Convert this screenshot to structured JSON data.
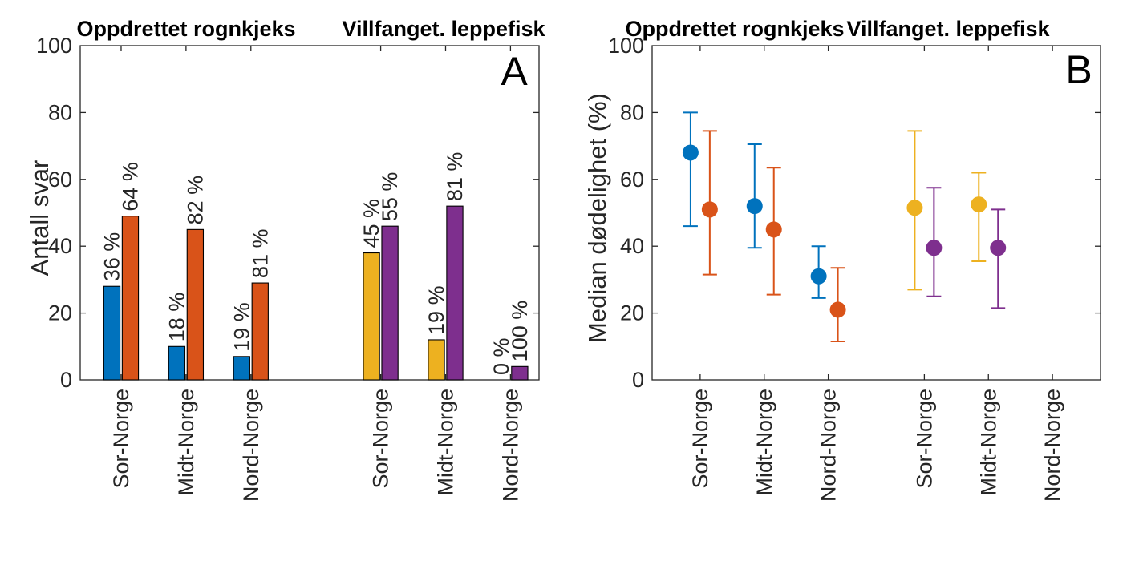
{
  "figure": {
    "background": "#ffffff",
    "text_color": "#262626",
    "title_color": "#000000",
    "palette": {
      "blue": "#0072BD",
      "orange": "#D95319",
      "yellow": "#EDB120",
      "purple": "#7E2F8E"
    }
  },
  "chart_data": [
    {
      "panel_label": "A",
      "type": "bar",
      "section_titles": [
        "Oppdrettet rognkjeks",
        "Villfanget. leppefisk"
      ],
      "ylabel": "Antall svar",
      "ylim": [
        0,
        100
      ],
      "yticks": [
        0,
        20,
        40,
        60,
        80,
        100
      ],
      "xlim": [
        0.37,
        7.44
      ],
      "grid": false,
      "groups": [
        {
          "category": "Sor-Norge",
          "x": 1,
          "bars": [
            {
              "color": "blue",
              "value": 28,
              "label": "36 %"
            },
            {
              "color": "orange",
              "value": 49,
              "label": "64 %"
            }
          ]
        },
        {
          "category": "Midt-Norge",
          "x": 2,
          "bars": [
            {
              "color": "blue",
              "value": 10,
              "label": "18 %"
            },
            {
              "color": "orange",
              "value": 45,
              "label": "82 %"
            }
          ]
        },
        {
          "category": "Nord-Norge",
          "x": 3,
          "bars": [
            {
              "color": "blue",
              "value": 7,
              "label": "19 %"
            },
            {
              "color": "orange",
              "value": 29,
              "label": "81 %"
            }
          ]
        },
        {
          "category": "Sor-Norge",
          "x": 5,
          "bars": [
            {
              "color": "yellow",
              "value": 38,
              "label": "45 %"
            },
            {
              "color": "purple",
              "value": 46,
              "label": "55 %"
            }
          ]
        },
        {
          "category": "Midt-Norge",
          "x": 6,
          "bars": [
            {
              "color": "yellow",
              "value": 12,
              "label": "19 %"
            },
            {
              "color": "purple",
              "value": 52,
              "label": "81 %"
            }
          ]
        },
        {
          "category": "Nord-Norge",
          "x": 7,
          "bars": [
            {
              "color": "yellow",
              "value": 0,
              "label": "0 %"
            },
            {
              "color": "purple",
              "value": 4,
              "label": "100 %"
            }
          ]
        }
      ]
    },
    {
      "panel_label": "B",
      "type": "scatter-errorbar",
      "section_titles": [
        "Oppdrettet rognkjeks",
        "Villfanget. leppefisk"
      ],
      "ylabel": "Median dødelighet (%)",
      "ylim": [
        0,
        100
      ],
      "yticks": [
        0,
        20,
        40,
        60,
        80,
        100
      ],
      "xlim": [
        0.25,
        7.25
      ],
      "grid": false,
      "groups": [
        {
          "category": "Sor-Norge",
          "x": 1,
          "points": [
            {
              "color": "blue",
              "y": 68,
              "lo": 46,
              "hi": 80
            },
            {
              "color": "orange",
              "y": 51,
              "lo": 31.5,
              "hi": 74.5
            }
          ]
        },
        {
          "category": "Midt-Norge",
          "x": 2,
          "points": [
            {
              "color": "blue",
              "y": 52,
              "lo": 39.5,
              "hi": 70.5
            },
            {
              "color": "orange",
              "y": 45,
              "lo": 25.5,
              "hi": 63.5
            }
          ]
        },
        {
          "category": "Nord-Norge",
          "x": 3,
          "points": [
            {
              "color": "blue",
              "y": 31,
              "lo": 24.5,
              "hi": 40
            },
            {
              "color": "orange",
              "y": 21,
              "lo": 11.5,
              "hi": 33.5
            }
          ]
        },
        {
          "category": "Sor-Norge",
          "x": 4.5,
          "points": [
            {
              "color": "yellow",
              "y": 51.5,
              "lo": 27,
              "hi": 74.5
            },
            {
              "color": "purple",
              "y": 39.5,
              "lo": 25,
              "hi": 57.5
            }
          ]
        },
        {
          "category": "Midt-Norge",
          "x": 5.5,
          "points": [
            {
              "color": "yellow",
              "y": 52.5,
              "lo": 35.5,
              "hi": 62
            },
            {
              "color": "purple",
              "y": 39.5,
              "lo": 21.5,
              "hi": 51
            }
          ]
        },
        {
          "category": "Nord-Norge",
          "x": 6.5,
          "points": []
        }
      ]
    }
  ]
}
